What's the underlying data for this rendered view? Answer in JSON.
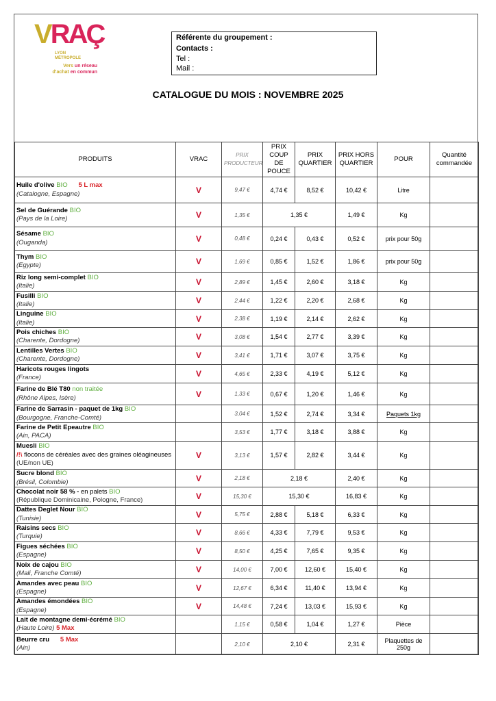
{
  "logo": {
    "word_v": "V",
    "word_rac": "RAÇ",
    "sub1": "LYON",
    "sub2": "MÉTROPOLE",
    "tag1a": "Vers ",
    "tag1b": "un réseau",
    "tag2a": "d'achat ",
    "tag2b": "en commun"
  },
  "contact": {
    "referente": "Référente du groupement :",
    "contacts": "Contacts :",
    "tel": "Tel :",
    "mail": "Mail :"
  },
  "title": "CATALOGUE DU MOIS : NOVEMBRE 2025",
  "headers": {
    "produits": "PRODUITS",
    "vrac": "VRAC",
    "prix_producteur": "PRIX PRODUCTEUR",
    "coup_de_pouce": "PRIX COUP DE POUCE",
    "quartier": "PRIX QUARTIER",
    "hors_quartier": "PRIX HORS QUARTIER",
    "pour": "POUR",
    "quantite": "Quantité commandée"
  },
  "rows": [
    {
      "name": "Huile d'olive",
      "bio": "BIO",
      "note": "5 L max",
      "origin": "(Catalogne, Espagne)",
      "vrac": "V",
      "prod": "9,47 €",
      "coup": "4,74 €",
      "quartier": "8,52 €",
      "hors": "10,42 €",
      "pour": "Litre"
    },
    {
      "name": "Sel de Guérande",
      "bio": "BIO",
      "origin": "(Pays de la Loire)",
      "vrac": "V",
      "prod": "1,35 €",
      "merged": "1,35 €",
      "hors": "1,49 €",
      "pour": "Kg"
    },
    {
      "name": "Sésame",
      "bio": "BIO",
      "origin": "(Ouganda)",
      "vrac": "V",
      "prod": "0,48 €",
      "coup": "0,24 €",
      "quartier": "0,43 €",
      "hors": "0,52 €",
      "pour": "prix pour 50g"
    },
    {
      "name": "Thym",
      "bio": "BIO",
      "origin": "(Egypte)",
      "vrac": "V",
      "prod": "1,69 €",
      "coup": "0,85 €",
      "quartier": "1,52 €",
      "hors": "1,86 €",
      "pour": "prix pour 50g"
    },
    {
      "name": "Riz long semi-complet",
      "bio": "BIO",
      "origin": "(Italie)",
      "vrac": "V",
      "prod": "2,89 €",
      "coup": "1,45 €",
      "quartier": "2,60 €",
      "hors": "3,18 €",
      "pour": "Kg"
    },
    {
      "name": "Fusilli",
      "bio": "BIO",
      "origin": "(Italie)",
      "vrac": "V",
      "prod": "2,44 €",
      "coup": "1,22 €",
      "quartier": "2,20 €",
      "hors": "2,68 €",
      "pour": "Kg"
    },
    {
      "name": "Linguine",
      "bio": "BIO",
      "origin": "(Italie)",
      "vrac": "V",
      "prod": "2,38 €",
      "coup": "1,19 €",
      "quartier": "2,14 €",
      "hors": "2,62 €",
      "pour": "Kg"
    },
    {
      "name": "Pois chiches",
      "bio": "BIO",
      "origin": "(Charente, Dordogne)",
      "vrac": "V",
      "prod": "3,08 €",
      "coup": "1,54 €",
      "quartier": "2,77 €",
      "hors": "3,39 €",
      "pour": "Kg"
    },
    {
      "name": "Lentilles Vertes",
      "bio": "BIO",
      "origin": "(Charente, Dordogne)",
      "vrac": "V",
      "prod": "3,41 €",
      "coup": "1,71 €",
      "quartier": "3,07 €",
      "hors": "3,75 €",
      "pour": "Kg"
    },
    {
      "name": "Haricots rouges lingots",
      "origin": "(France)",
      "vrac": "V",
      "prod": "4,65 €",
      "coup": "2,33 €",
      "quartier": "4,19 €",
      "hors": "5,12 €",
      "pour": "Kg"
    },
    {
      "name": "Farine de Blé T80",
      "bio": "non traitée",
      "origin": "(Rhône Alpes, Isère)",
      "vrac": "V",
      "prod": "1,33 €",
      "coup": "0,67 €",
      "quartier": "1,20 €",
      "hors": "1,46 €",
      "pour": "Kg"
    },
    {
      "name": "Farine de Sarrasin - paquet de 1kg",
      "bio": "BIO",
      "origin": "(Bourgogne, Franche-Comté)",
      "prod": "3,04 €",
      "coup": "1,52 €",
      "quartier": "2,74 €",
      "hors": "3,34 €",
      "pour": "Paquets 1kg",
      "pour_ul": true
    },
    {
      "name": "Farine de Petit Epeautre",
      "bio": "BIO",
      "origin": "(Ain, PACA)",
      "prod": "3,53 €",
      "coup": "1,77 €",
      "quartier": "3,18 €",
      "hors": "3,88 €",
      "pour": "Kg"
    },
    {
      "name": "Muesli",
      "bio": "BIO",
      "warning": "/!\\",
      "warning_text": " flocons de céréales avec des graines oléagineuses",
      "origin_plain": "(UE/non UE)",
      "vrac": "V",
      "prod": "3,13 €",
      "coup": "1,57 €",
      "quartier": "2,82 €",
      "hors": "3,44 €",
      "pour": "Kg"
    },
    {
      "name": "Sucre blond",
      "bio": "BIO",
      "origin": "(Brésil, Colombie)",
      "vrac": "V",
      "prod": "2,18 €",
      "merged": "2,18 €",
      "hors": "2,40 €",
      "pour": "Kg"
    },
    {
      "name": "Chocolat noir 58 % -",
      "name_extra": " en palets",
      "bio": "BIO",
      "origin_plain": "(République Dominicaine, Pologne, France)",
      "vrac": "V",
      "prod": "15,30 €",
      "merged": "15,30 €",
      "hors": "16,83 €",
      "pour": "Kg"
    },
    {
      "name": "Dattes Deglet Nour",
      "bio": "BIO",
      "origin": "(Tunisie)",
      "vrac": "V",
      "prod": "5,75 €",
      "coup": "2,88 €",
      "quartier": "5,18 €",
      "hors": "6,33 €",
      "pour": "Kg"
    },
    {
      "name": "Raisins secs",
      "bio": "BIO",
      "origin": "(Turquie)",
      "vrac": "V",
      "prod": "8,66 €",
      "coup": "4,33 €",
      "quartier": "7,79 €",
      "hors": "9,53 €",
      "pour": "Kg"
    },
    {
      "name": "Figues séchées",
      "bio": "BIO",
      "origin": "(Espagne)",
      "vrac": "V",
      "prod": "8,50 €",
      "coup": "4,25 €",
      "quartier": "7,65 €",
      "hors": "9,35 €",
      "pour": "Kg"
    },
    {
      "name": "Noix de cajou",
      "bio": "BIO",
      "origin": "(Mali, Franche Comté)",
      "vrac": "V",
      "prod": "14,00 €",
      "coup": "7,00 €",
      "quartier": "12,60 €",
      "hors": "15,40 €",
      "pour": "Kg"
    },
    {
      "name": "Amandes avec peau",
      "bio": "BIO",
      "origin": "(Espagne)",
      "vrac": "V",
      "prod": "12,67 €",
      "coup": "6,34 €",
      "quartier": "11,40 €",
      "hors": "13,94 €",
      "pour": "Kg"
    },
    {
      "name": "Amandes émondées",
      "bio": "BIO",
      "origin": "(Espagne)",
      "vrac": "V",
      "prod": "14,48 €",
      "coup": "7,24 €",
      "quartier": "13,03 €",
      "hors": "15,93 €",
      "pour": "Kg"
    },
    {
      "name": "Lait de montagne demi-écrémé",
      "bio": "BIO",
      "origin": "(Haute Loire)",
      "origin_note": "5 Max",
      "prod": "1,15 €",
      "coup": "0,58 €",
      "quartier": "1,04 €",
      "hors": "1,27 €",
      "pour": "Pièce"
    },
    {
      "name": "Beurre cru",
      "note": "5 Max",
      "origin": "(Ain)",
      "prod": "2,10 €",
      "merged": "2,10 €",
      "hors": "2,31 €",
      "pour": "Plaquettes de 250g"
    }
  ]
}
